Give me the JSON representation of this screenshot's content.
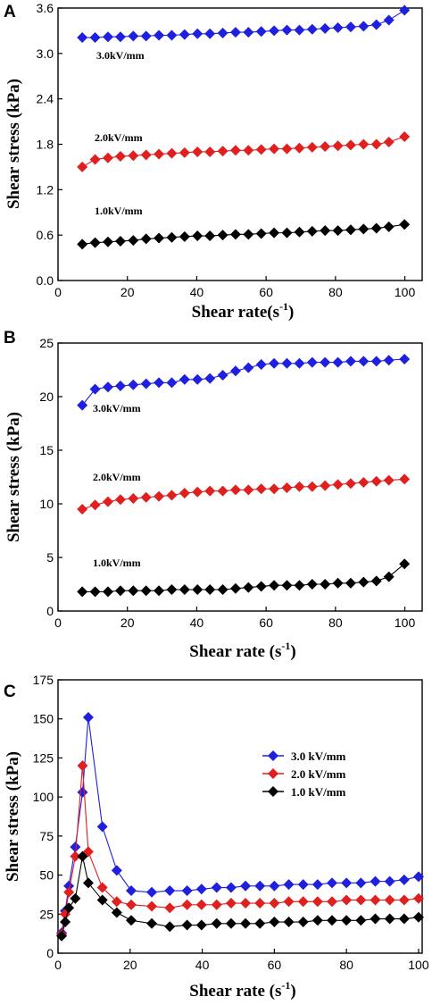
{
  "chart_data": [
    {
      "type": "line",
      "panel": "A",
      "xlabel": "Shear rate(s",
      "xlabel_sup": "-1",
      "xlabel_end": ")",
      "ylabel": "Shear stress (kPa)",
      "xlim": [
        0,
        105
      ],
      "ylim": [
        0,
        3.6
      ],
      "xticks": [
        "0",
        "20",
        "40",
        "60",
        "80",
        "100"
      ],
      "yticks": [
        "0.0",
        "0.6",
        "1.2",
        "1.8",
        "2.4",
        "3.0",
        "3.6"
      ],
      "x": [
        7,
        10.7,
        14.4,
        18,
        21.7,
        25.4,
        29.1,
        32.8,
        36.5,
        40.2,
        43.8,
        47.5,
        51.2,
        54.9,
        58.6,
        62.3,
        66,
        69.6,
        73.3,
        77,
        80.7,
        84.4,
        88.1,
        91.8,
        95.4,
        99.9
      ],
      "series": [
        {
          "name": "3.0kV/mm",
          "color": "#1f1fe0",
          "values": [
            3.21,
            3.21,
            3.22,
            3.22,
            3.23,
            3.23,
            3.24,
            3.24,
            3.25,
            3.26,
            3.26,
            3.27,
            3.28,
            3.28,
            3.29,
            3.3,
            3.31,
            3.31,
            3.32,
            3.33,
            3.34,
            3.35,
            3.36,
            3.38,
            3.44,
            3.57
          ]
        },
        {
          "name": "2.0kV/mm",
          "color": "#e01f1f",
          "values": [
            1.5,
            1.6,
            1.62,
            1.64,
            1.65,
            1.66,
            1.67,
            1.68,
            1.69,
            1.7,
            1.7,
            1.71,
            1.72,
            1.72,
            1.73,
            1.74,
            1.74,
            1.75,
            1.76,
            1.77,
            1.78,
            1.79,
            1.8,
            1.8,
            1.83,
            1.9
          ]
        },
        {
          "name": "1.0kV/mm",
          "color": "#000000",
          "values": [
            0.48,
            0.5,
            0.51,
            0.52,
            0.53,
            0.55,
            0.56,
            0.57,
            0.58,
            0.59,
            0.59,
            0.6,
            0.61,
            0.61,
            0.62,
            0.63,
            0.63,
            0.64,
            0.65,
            0.66,
            0.66,
            0.67,
            0.68,
            0.69,
            0.71,
            0.74
          ]
        }
      ]
    },
    {
      "type": "line",
      "panel": "B",
      "xlabel": "Shear rate (s",
      "xlabel_sup": "-1",
      "xlabel_end": ")",
      "ylabel": "Shear stress (kPa)",
      "xlim": [
        0,
        105
      ],
      "ylim": [
        0,
        25
      ],
      "xticks": [
        "0",
        "20",
        "40",
        "60",
        "80",
        "100"
      ],
      "yticks": [
        "0",
        "5",
        "10",
        "15",
        "20",
        "25"
      ],
      "x": [
        7,
        10.7,
        14.4,
        18,
        21.7,
        25.4,
        29.1,
        32.8,
        36.5,
        40.2,
        43.8,
        47.5,
        51.2,
        54.9,
        58.6,
        62.3,
        66,
        69.6,
        73.3,
        77,
        80.7,
        84.4,
        88.1,
        91.8,
        95.4,
        99.9
      ],
      "series": [
        {
          "name": "3.0kV/mm",
          "color": "#1f1fe0",
          "values": [
            19.2,
            20.7,
            20.9,
            21.0,
            21.1,
            21.2,
            21.3,
            21.3,
            21.6,
            21.6,
            21.7,
            22.0,
            22.4,
            22.7,
            23.0,
            23.1,
            23.1,
            23.1,
            23.2,
            23.2,
            23.2,
            23.3,
            23.3,
            23.3,
            23.4,
            23.5
          ]
        },
        {
          "name": "2.0kV/mm",
          "color": "#e01f1f",
          "values": [
            9.5,
            9.9,
            10.2,
            10.4,
            10.5,
            10.6,
            10.7,
            10.8,
            11.0,
            11.1,
            11.2,
            11.2,
            11.3,
            11.3,
            11.4,
            11.4,
            11.5,
            11.6,
            11.6,
            11.7,
            11.8,
            11.9,
            12.0,
            12.1,
            12.2,
            12.3
          ]
        },
        {
          "name": "1.0kV/mm",
          "color": "#000000",
          "values": [
            1.8,
            1.8,
            1.8,
            1.9,
            1.9,
            1.9,
            1.9,
            2.0,
            2.0,
            2.0,
            2.0,
            2.0,
            2.1,
            2.2,
            2.3,
            2.4,
            2.4,
            2.4,
            2.5,
            2.5,
            2.6,
            2.6,
            2.7,
            2.8,
            3.2,
            4.4
          ]
        }
      ]
    },
    {
      "type": "line",
      "panel": "C",
      "xlabel": "Shear rate (s",
      "xlabel_sup": "-1",
      "xlabel_end": ")",
      "ylabel": "Shear stress (kPa)",
      "xlim": [
        0,
        101
      ],
      "ylim": [
        0,
        175
      ],
      "xticks": [
        "0",
        "20",
        "40",
        "60",
        "80",
        "100"
      ],
      "yticks": [
        "0",
        "25",
        "50",
        "75",
        "100",
        "125",
        "150",
        "175"
      ],
      "legend_position": "center-right",
      "x": [
        1,
        2,
        3,
        4.8,
        6.8,
        8.4,
        12.3,
        16.3,
        20.3,
        26,
        31,
        35.8,
        39.8,
        44,
        48,
        52,
        56,
        60,
        64,
        68,
        72,
        76,
        80,
        84,
        88,
        92,
        96,
        100
      ],
      "series": [
        {
          "name": "3.0 kV/mm",
          "color": "#1f1fe0",
          "values": [
            13,
            27,
            43,
            68,
            103,
            151,
            81,
            53,
            40,
            39,
            40,
            40,
            41,
            42,
            42,
            43,
            43,
            43,
            44,
            44,
            44,
            45,
            45,
            45,
            46,
            46,
            47,
            49
          ]
        },
        {
          "name": "2.0 kV/mm",
          "color": "#e01f1f",
          "values": [
            12,
            25,
            39,
            62,
            120,
            65,
            42,
            33,
            31,
            30,
            29,
            31,
            31,
            31,
            32,
            32,
            32,
            32,
            33,
            33,
            33,
            33,
            34,
            34,
            34,
            34,
            34,
            35
          ]
        },
        {
          "name": "1.0 kV/mm",
          "color": "#000000",
          "values": [
            11,
            20,
            29,
            35,
            62,
            45,
            34,
            26,
            21,
            19,
            17,
            18,
            18,
            19,
            19,
            19,
            19,
            20,
            20,
            20,
            21,
            21,
            21,
            21,
            22,
            22,
            22,
            23
          ]
        }
      ]
    }
  ]
}
